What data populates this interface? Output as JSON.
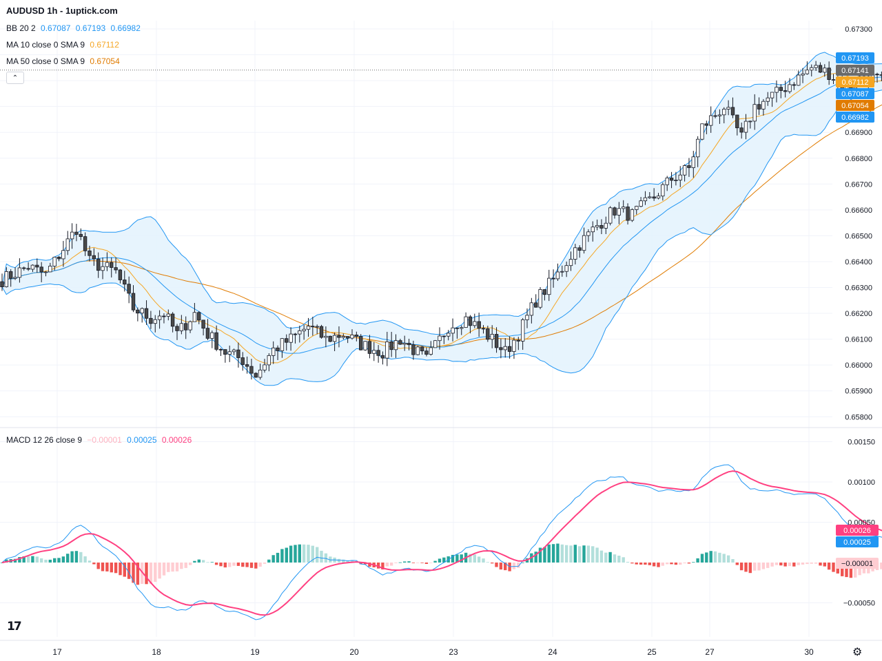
{
  "header": {
    "title": "AUDUSD 1h - 1uptick.com",
    "bb_label": "BB 20 2",
    "bb_values": [
      "0.67087",
      "0.67193",
      "0.66982"
    ],
    "ma10_label": "MA 10 close 0 SMA 9",
    "ma10_value": "0.67112",
    "ma50_label": "MA 50 close 0 SMA 9",
    "ma50_value": "0.67054",
    "macd_label": "MACD 12 26 close 9",
    "macd_values": [
      "−0.00001",
      "0.00025",
      "0.00026"
    ]
  },
  "colors": {
    "bb": "#2196f3",
    "bb_fill": "#e3f2fd",
    "ma10": "#f5a623",
    "ma50": "#e07b00",
    "candle_up": "#ffffff",
    "candle_down": "#4a4a4a",
    "macd_line": "#2196f3",
    "signal_line": "#ff4081",
    "hist_pos_strong": "#26a69a",
    "hist_pos_weak": "#b2dfdb",
    "hist_neg_strong": "#ef5350",
    "hist_neg_weak": "#ffcdd2",
    "last_price": "#6b6b6b"
  },
  "chart_data": [
    {
      "type": "candlestick",
      "title": "AUDUSD 1h - 1uptick.com",
      "y_ticks": [
        "0.67300",
        "0.67200",
        "0.67100",
        "0.67000",
        "0.66900",
        "0.66800",
        "0.66700",
        "0.66600",
        "0.66500",
        "0.66400",
        "0.66300",
        "0.66200",
        "0.66100",
        "0.66000",
        "0.65900",
        "0.65800"
      ],
      "y_tick_values": [
        0.673,
        0.672,
        0.671,
        0.67,
        0.669,
        0.668,
        0.667,
        0.666,
        0.665,
        0.664,
        0.663,
        0.662,
        0.661,
        0.66,
        0.659,
        0.658
      ],
      "ylim": [
        0.6577,
        0.6735
      ],
      "x_tick_labels": [
        "17",
        "18",
        "19",
        "20",
        "23",
        "24",
        "25",
        "27",
        "30"
      ],
      "price_tags": [
        {
          "label": "0.67193",
          "value": 0.67193,
          "color": "#2196f3"
        },
        {
          "label": "0.67141",
          "value": 0.67141,
          "color": "#6b6b6b"
        },
        {
          "label": "0.67112",
          "value": 0.67112,
          "color": "#f5a623"
        },
        {
          "label": "0.67087",
          "value": 0.67087,
          "color": "#2196f3"
        },
        {
          "label": "0.67054",
          "value": 0.67054,
          "color": "#e07b00"
        },
        {
          "label": "0.66982",
          "value": 0.66982,
          "color": "#2196f3"
        }
      ],
      "last_price": 0.67141,
      "anchors": [
        [
          0,
          0.6633
        ],
        [
          6,
          0.6638
        ],
        [
          10,
          0.6635
        ],
        [
          14,
          0.6645
        ],
        [
          17,
          0.6653
        ],
        [
          20,
          0.664
        ],
        [
          26,
          0.6636
        ],
        [
          30,
          0.6622
        ],
        [
          34,
          0.6618
        ],
        [
          37,
          0.662
        ],
        [
          40,
          0.6612
        ],
        [
          44,
          0.662
        ],
        [
          47,
          0.6612
        ],
        [
          51,
          0.6605
        ],
        [
          55,
          0.6602
        ],
        [
          58,
          0.6596
        ],
        [
          62,
          0.6606
        ],
        [
          66,
          0.661
        ],
        [
          70,
          0.6615
        ],
        [
          74,
          0.661
        ],
        [
          78,
          0.6612
        ],
        [
          82,
          0.6608
        ],
        [
          87,
          0.6605
        ],
        [
          91,
          0.661
        ],
        [
          97,
          0.6602
        ],
        [
          102,
          0.6615
        ],
        [
          106,
          0.6618
        ],
        [
          110,
          0.6613
        ],
        [
          115,
          0.6605
        ],
        [
          118,
          0.6612
        ],
        [
          122,
          0.6625
        ],
        [
          127,
          0.6635
        ],
        [
          131,
          0.6645
        ],
        [
          136,
          0.6654
        ],
        [
          140,
          0.666
        ],
        [
          144,
          0.6658
        ],
        [
          149,
          0.6665
        ],
        [
          153,
          0.6672
        ],
        [
          157,
          0.6676
        ],
        [
          160,
          0.6692
        ],
        [
          165,
          0.67
        ],
        [
          169,
          0.6688
        ],
        [
          172,
          0.67
        ],
        [
          177,
          0.6705
        ],
        [
          181,
          0.671
        ],
        [
          185,
          0.6715
        ],
        [
          189,
          0.6713
        ],
        [
          193,
          0.6707
        ],
        [
          197,
          0.6712
        ],
        [
          201,
          0.671
        ],
        [
          205,
          0.6704
        ],
        [
          209,
          0.67
        ],
        [
          213,
          0.6712
        ],
        [
          216,
          0.6718
        ],
        [
          220,
          0.671
        ],
        [
          224,
          0.6712
        ],
        [
          226,
          0.6714
        ]
      ],
      "overlays": [
        {
          "name": "BB 20 2",
          "color": "#2196f3"
        },
        {
          "name": "MA 10 close 0 SMA 9",
          "color": "#f5a623"
        },
        {
          "name": "MA 50 close 0 SMA 9",
          "color": "#e07b00"
        }
      ]
    },
    {
      "type": "line",
      "title": "MACD 12 26 close 9",
      "y_ticks": [
        "0.00150",
        "0.00100",
        "0.00050",
        "−0.00050"
      ],
      "y_tick_values": [
        0.0015,
        0.001,
        0.0005,
        -0.0005
      ],
      "ylim": [
        -0.00075,
        0.0016
      ],
      "price_tags": [
        {
          "label": "0.00026",
          "value": 0.00026,
          "color": "#ff4081"
        },
        {
          "label": "0.00025",
          "value": 0.00025,
          "color": "#2196f3"
        },
        {
          "label": "−0.00001",
          "value": -1e-05,
          "color": "#ffcdd2"
        }
      ],
      "series": [
        {
          "name": "MACD",
          "values": "computed from close prices"
        },
        {
          "name": "Signal",
          "values": "computed from close prices"
        }
      ]
    }
  ]
}
